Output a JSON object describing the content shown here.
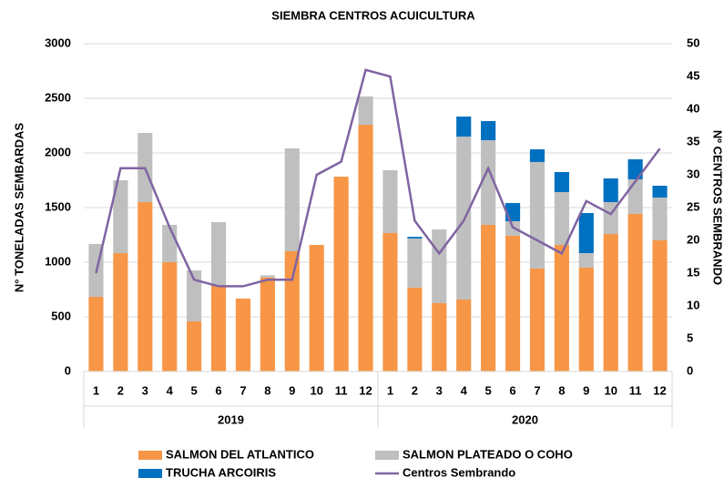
{
  "chart_data": {
    "type": "bar",
    "title": "SIEMBRA CENTROS ACUICULTURA",
    "y_label": "N° TONELADAS SEMBARDAS",
    "y2_label": "Nº CENTROS SEMBRANDO",
    "categories": [
      "1",
      "2",
      "3",
      "4",
      "5",
      "6",
      "7",
      "8",
      "9",
      "10",
      "11",
      "12",
      "1",
      "2",
      "3",
      "4",
      "5",
      "6",
      "7",
      "8",
      "9",
      "10",
      "11",
      "12"
    ],
    "groups": [
      "2019",
      "2020"
    ],
    "stacked": true,
    "series": [
      {
        "name": "SALMON DEL ATLANTICO",
        "color": "#f79646",
        "values": [
          683,
          1083,
          1550,
          1000,
          458,
          792,
          667,
          860,
          1100,
          1158,
          1783,
          2258,
          1267,
          767,
          625,
          658,
          1342,
          1242,
          942,
          1158,
          950,
          1258,
          1442,
          1200
        ]
      },
      {
        "name": "SALMON PLATEADO O COHO",
        "color": "#bfbfbf",
        "values": [
          484,
          667,
          633,
          342,
          467,
          575,
          0,
          20,
          942,
          0,
          0,
          259,
          575,
          450,
          675,
          1492,
          775,
          133,
          975,
          484,
          133,
          292,
          316,
          392
        ]
      },
      {
        "name": "TRUCHA ARCOIRIS",
        "color": "#0070c0",
        "values": [
          0,
          0,
          0,
          0,
          0,
          0,
          0,
          0,
          0,
          0,
          0,
          0,
          0,
          15,
          0,
          183,
          175,
          167,
          116,
          183,
          367,
          217,
          184,
          108
        ]
      },
      {
        "name": "Centros Sembrando",
        "color": "#8064a2",
        "type": "line",
        "axis": "y2",
        "values": [
          15,
          31,
          31,
          22,
          14,
          13,
          13,
          14,
          14,
          30,
          32,
          46,
          45,
          23,
          18,
          23,
          31,
          22,
          20,
          18,
          26,
          24,
          29,
          34
        ]
      }
    ],
    "ylim": [
      0,
      3000
    ],
    "yticks": [
      0,
      500,
      1000,
      1500,
      2000,
      2500,
      3000
    ],
    "y2lim": [
      0,
      50
    ],
    "y2ticks": [
      0,
      5,
      10,
      15,
      20,
      25,
      30,
      35,
      40,
      45,
      50
    ],
    "grid": true,
    "legend": "bottom"
  }
}
